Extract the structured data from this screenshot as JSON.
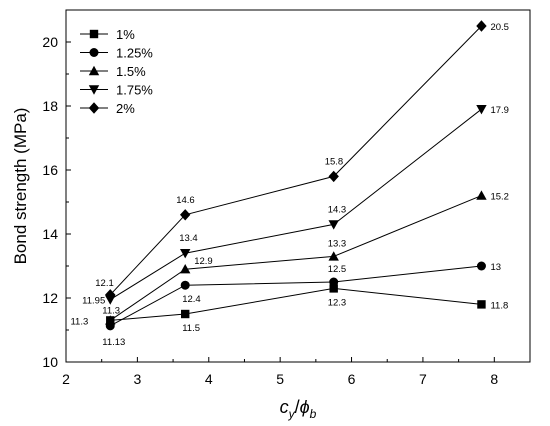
{
  "chart_data": {
    "type": "line",
    "xlabel_main": "c",
    "xlabel_sub1": "y",
    "xlabel_sep": "/",
    "xlabel_phi": "ϕ",
    "xlabel_sub2": "b",
    "ylabel": "Bond strength (MPa)",
    "xlim": [
      2,
      8.5
    ],
    "ylim": [
      10,
      21
    ],
    "x_ticks": [
      "2",
      "3",
      "4",
      "5",
      "6",
      "7",
      "8"
    ],
    "y_ticks": [
      "10",
      "12",
      "14",
      "16",
      "18",
      "20"
    ],
    "legend_position": "top-left",
    "series": [
      {
        "name": "1%",
        "marker": "square",
        "points": [
          {
            "x": 2.62,
            "y": 11.3,
            "label": "11.3"
          },
          {
            "x": 3.67,
            "y": 11.5,
            "label": "11.5"
          },
          {
            "x": 5.75,
            "y": 12.3,
            "label": "12.3"
          },
          {
            "x": 7.82,
            "y": 11.8,
            "label": "11.8"
          }
        ]
      },
      {
        "name": "1.25%",
        "marker": "circle",
        "points": [
          {
            "x": 2.62,
            "y": 11.13,
            "label": "11.13"
          },
          {
            "x": 3.67,
            "y": 12.4,
            "label": "12.4"
          },
          {
            "x": 5.75,
            "y": 12.5,
            "label": "12.5"
          },
          {
            "x": 7.82,
            "y": 13.0,
            "label": "13"
          }
        ]
      },
      {
        "name": "1.5%",
        "marker": "triangle-up",
        "points": [
          {
            "x": 2.62,
            "y": 11.3,
            "label": "11.3"
          },
          {
            "x": 3.67,
            "y": 12.9,
            "label": "12.9"
          },
          {
            "x": 5.75,
            "y": 13.3,
            "label": "13.3"
          },
          {
            "x": 7.82,
            "y": 15.2,
            "label": "15.2"
          }
        ]
      },
      {
        "name": "1.75%",
        "marker": "triangle-down",
        "points": [
          {
            "x": 2.62,
            "y": 11.95,
            "label": "11.95"
          },
          {
            "x": 3.67,
            "y": 13.4,
            "label": "13.4"
          },
          {
            "x": 5.75,
            "y": 14.3,
            "label": "14.3"
          },
          {
            "x": 7.82,
            "y": 17.9,
            "label": "17.9"
          }
        ]
      },
      {
        "name": "2%",
        "marker": "diamond",
        "points": [
          {
            "x": 2.62,
            "y": 12.1,
            "label": "12.1"
          },
          {
            "x": 3.67,
            "y": 14.6,
            "label": "14.6"
          },
          {
            "x": 5.75,
            "y": 15.8,
            "label": "15.8"
          },
          {
            "x": 7.82,
            "y": 20.5,
            "label": "20.5"
          }
        ]
      }
    ]
  }
}
